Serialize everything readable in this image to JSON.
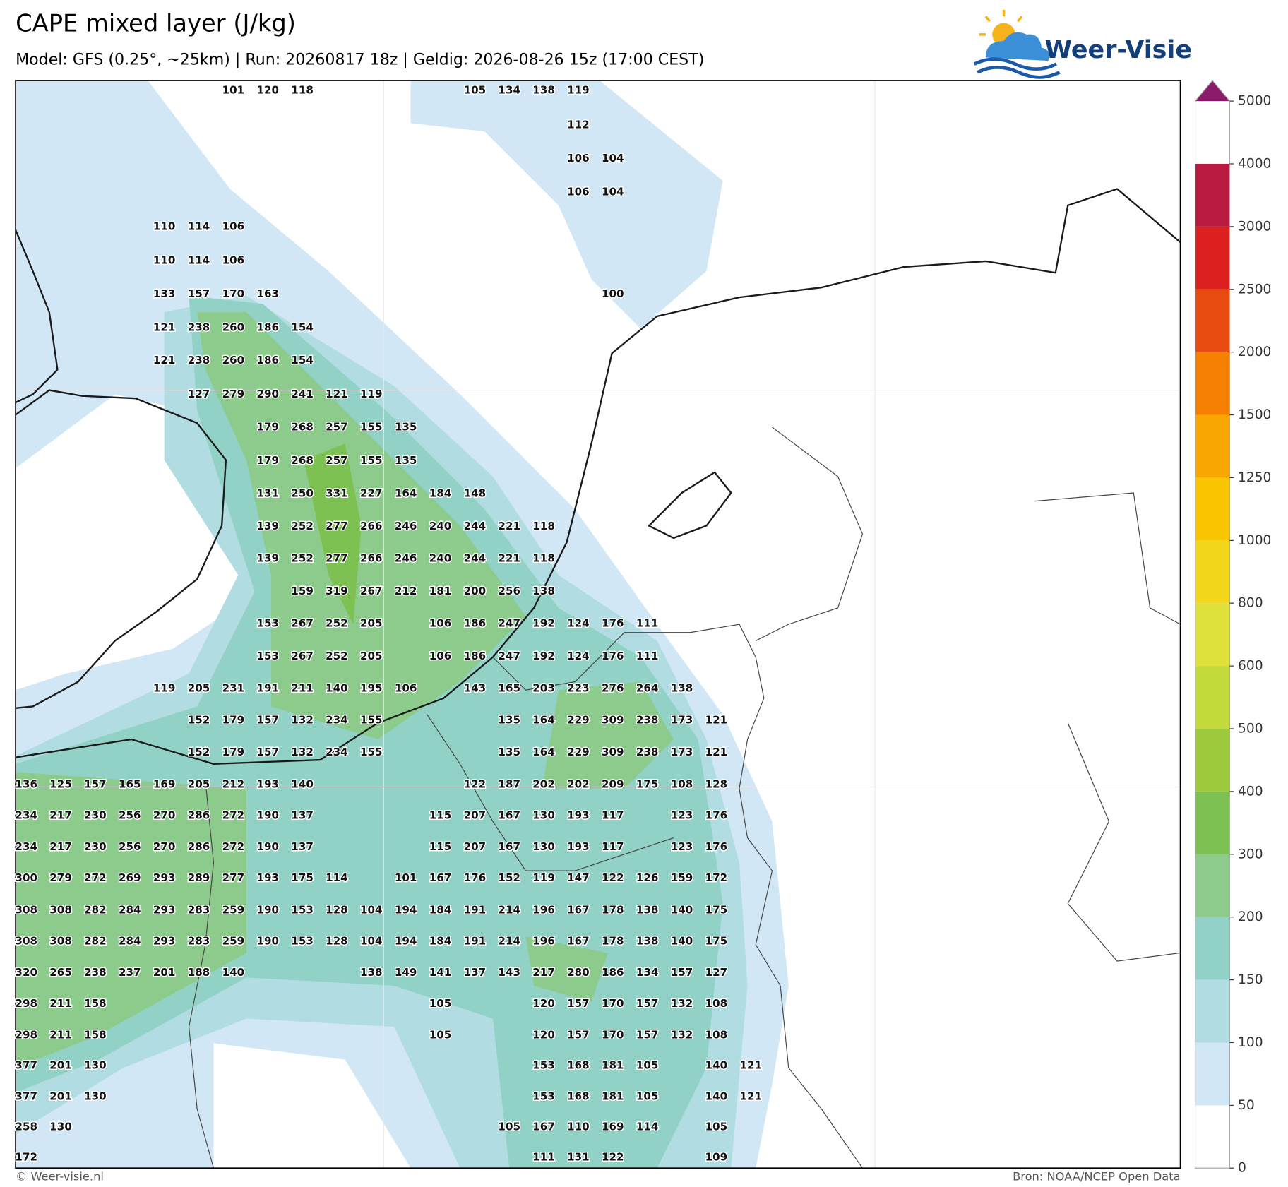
{
  "header": {
    "title": "CAPE mixed layer (J/kg)",
    "subtitle": "Model: GFS (0.25°, ~25km)  |  Run: 20260817 18z  |  Geldig: 2026-08-26 15z (17:00 CEST)",
    "logo": "Weer-Visie"
  },
  "map": {
    "labels": [
      [
        null,
        null,
        null,
        null,
        null,
        null,
        101,
        120,
        118,
        null,
        null,
        null,
        null,
        105,
        134,
        138,
        119,
        null,
        null,
        null,
        null,
        null
      ],
      [
        null,
        null,
        null,
        null,
        null,
        null,
        null,
        null,
        null,
        null,
        null,
        null,
        null,
        null,
        null,
        null,
        112,
        null,
        null,
        null,
        null,
        null
      ],
      [
        null,
        null,
        null,
        null,
        null,
        null,
        null,
        null,
        null,
        null,
        null,
        null,
        null,
        null,
        null,
        null,
        106,
        104,
        null,
        null,
        null,
        null
      ],
      [
        null,
        null,
        null,
        null,
        null,
        null,
        null,
        null,
        null,
        null,
        null,
        null,
        null,
        null,
        null,
        null,
        106,
        104,
        null,
        null,
        null,
        null
      ],
      [
        null,
        null,
        null,
        null,
        110,
        114,
        106,
        null,
        null,
        null,
        null,
        null,
        null,
        null,
        null,
        null,
        null,
        null,
        null,
        null,
        null,
        null
      ],
      [
        null,
        null,
        null,
        null,
        110,
        114,
        106,
        null,
        null,
        null,
        null,
        null,
        null,
        null,
        null,
        null,
        null,
        null,
        null,
        null,
        null,
        null
      ],
      [
        null,
        null,
        null,
        null,
        133,
        157,
        170,
        163,
        null,
        null,
        null,
        null,
        null,
        null,
        null,
        null,
        null,
        100,
        null,
        null,
        null,
        null
      ],
      [
        null,
        null,
        null,
        null,
        121,
        238,
        260,
        186,
        154,
        null,
        null,
        null,
        null,
        null,
        null,
        null,
        null,
        null,
        null,
        null,
        null,
        null
      ],
      [
        null,
        null,
        null,
        null,
        121,
        238,
        260,
        186,
        154,
        null,
        null,
        null,
        null,
        null,
        null,
        null,
        null,
        null,
        null,
        null,
        null,
        null
      ],
      [
        null,
        null,
        null,
        null,
        null,
        127,
        279,
        290,
        241,
        121,
        119,
        null,
        null,
        null,
        null,
        null,
        null,
        null,
        null,
        null,
        null,
        null
      ],
      [
        null,
        null,
        null,
        null,
        null,
        null,
        null,
        179,
        268,
        257,
        155,
        135,
        null,
        null,
        null,
        null,
        null,
        null,
        null,
        null,
        null,
        null
      ],
      [
        null,
        null,
        null,
        null,
        null,
        null,
        null,
        179,
        268,
        257,
        155,
        135,
        null,
        null,
        null,
        null,
        null,
        null,
        null,
        null,
        null,
        null
      ],
      [
        null,
        null,
        null,
        null,
        null,
        null,
        null,
        131,
        250,
        331,
        227,
        164,
        184,
        148,
        null,
        null,
        null,
        null,
        null,
        null,
        null,
        null
      ],
      [
        null,
        null,
        null,
        null,
        null,
        null,
        null,
        139,
        252,
        277,
        266,
        246,
        240,
        244,
        221,
        118,
        null,
        null,
        null,
        null,
        null,
        null
      ],
      [
        null,
        null,
        null,
        null,
        null,
        null,
        null,
        139,
        252,
        277,
        266,
        246,
        240,
        244,
        221,
        118,
        null,
        null,
        null,
        null,
        null,
        null
      ],
      [
        null,
        null,
        null,
        null,
        null,
        null,
        null,
        null,
        159,
        319,
        267,
        212,
        181,
        200,
        256,
        138,
        null,
        null,
        null,
        null,
        null,
        null
      ],
      [
        null,
        null,
        null,
        null,
        null,
        null,
        null,
        153,
        267,
        252,
        205,
        null,
        106,
        186,
        247,
        192,
        124,
        176,
        111,
        null,
        null,
        null
      ],
      [
        null,
        null,
        null,
        null,
        null,
        null,
        null,
        153,
        267,
        252,
        205,
        null,
        106,
        186,
        247,
        192,
        124,
        176,
        111,
        null,
        null,
        null
      ],
      [
        null,
        null,
        null,
        null,
        119,
        205,
        231,
        191,
        211,
        140,
        195,
        106,
        null,
        143,
        165,
        203,
        223,
        276,
        264,
        138,
        null,
        null
      ],
      [
        null,
        null,
        null,
        null,
        null,
        152,
        179,
        157,
        132,
        234,
        155,
        null,
        null,
        null,
        135,
        164,
        229,
        309,
        238,
        173,
        121,
        null
      ],
      [
        null,
        null,
        null,
        null,
        null,
        152,
        179,
        157,
        132,
        234,
        155,
        null,
        null,
        null,
        135,
        164,
        229,
        309,
        238,
        173,
        121,
        null
      ],
      [
        136,
        125,
        157,
        165,
        169,
        205,
        212,
        193,
        140,
        null,
        null,
        null,
        null,
        122,
        187,
        202,
        202,
        209,
        175,
        108,
        128,
        null
      ],
      [
        234,
        217,
        230,
        256,
        270,
        286,
        272,
        190,
        137,
        null,
        null,
        null,
        115,
        207,
        167,
        130,
        193,
        117,
        null,
        123,
        176,
        null
      ],
      [
        234,
        217,
        230,
        256,
        270,
        286,
        272,
        190,
        137,
        null,
        null,
        null,
        115,
        207,
        167,
        130,
        193,
        117,
        null,
        123,
        176,
        null
      ],
      [
        300,
        279,
        272,
        269,
        293,
        289,
        277,
        193,
        175,
        114,
        null,
        101,
        167,
        176,
        152,
        119,
        147,
        122,
        126,
        159,
        172,
        null
      ],
      [
        308,
        308,
        282,
        284,
        293,
        283,
        259,
        190,
        153,
        128,
        104,
        194,
        184,
        191,
        214,
        196,
        167,
        178,
        138,
        140,
        175,
        null
      ],
      [
        308,
        308,
        282,
        284,
        293,
        283,
        259,
        190,
        153,
        128,
        104,
        194,
        184,
        191,
        214,
        196,
        167,
        178,
        138,
        140,
        175,
        null
      ],
      [
        320,
        265,
        238,
        237,
        201,
        188,
        140,
        null,
        null,
        null,
        138,
        149,
        141,
        137,
        143,
        217,
        280,
        186,
        134,
        157,
        127,
        null
      ],
      [
        298,
        211,
        158,
        null,
        null,
        null,
        null,
        null,
        null,
        null,
        null,
        null,
        105,
        null,
        null,
        120,
        157,
        170,
        157,
        132,
        108,
        null
      ],
      [
        298,
        211,
        158,
        null,
        null,
        null,
        null,
        null,
        null,
        null,
        null,
        null,
        105,
        null,
        null,
        120,
        157,
        170,
        157,
        132,
        108,
        null
      ],
      [
        377,
        201,
        130,
        null,
        null,
        null,
        null,
        null,
        null,
        null,
        null,
        null,
        null,
        null,
        null,
        153,
        168,
        181,
        105,
        null,
        140,
        121
      ],
      [
        377,
        201,
        130,
        null,
        null,
        null,
        null,
        null,
        null,
        null,
        null,
        null,
        null,
        null,
        null,
        153,
        168,
        181,
        105,
        null,
        140,
        121
      ],
      [
        258,
        130,
        null,
        null,
        null,
        null,
        null,
        null,
        null,
        null,
        null,
        null,
        null,
        null,
        105,
        167,
        110,
        169,
        114,
        null,
        105,
        null
      ],
      [
        172,
        null,
        null,
        null,
        null,
        null,
        null,
        null,
        null,
        null,
        null,
        null,
        null,
        null,
        null,
        111,
        131,
        122,
        null,
        null,
        109,
        null
      ]
    ]
  },
  "colorbar": {
    "levels": [
      0,
      50,
      100,
      150,
      200,
      300,
      400,
      500,
      600,
      800,
      1000,
      1250,
      1500,
      2000,
      2500,
      3000,
      4000,
      5000
    ],
    "colors": [
      "#ffffff",
      "#d1e7f5",
      "#b1dde2",
      "#92d1c6",
      "#8ccb8c",
      "#7dc152",
      "#9dca3c",
      "#c3d93c",
      "#dfe03a",
      "#f2d61c",
      "#f9c400",
      "#f9a600",
      "#f57f00",
      "#e84b10",
      "#dc2020",
      "#b81b3f"
    ],
    "extend_color": "#8b1b6b"
  },
  "footer": {
    "left": "© Weer-visie.nl",
    "right": "Bron: NOAA/NCEP Open Data"
  }
}
